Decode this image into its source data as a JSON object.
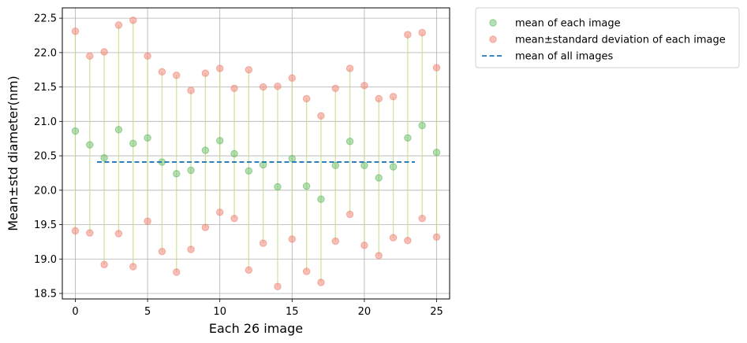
{
  "chart_data": {
    "type": "scatter",
    "title": "",
    "xlabel": "Each 26 image",
    "ylabel": "Mean±std diameter(nm)",
    "xlim": [
      -0.9,
      25.9
    ],
    "ylim": [
      18.42,
      22.65
    ],
    "xticks": [
      0,
      5,
      10,
      15,
      20,
      25
    ],
    "yticks": [
      18.5,
      19.0,
      19.5,
      20.0,
      20.5,
      21.0,
      21.5,
      22.0,
      22.5
    ],
    "grid": true,
    "legend_position": "outside-upper-right",
    "x": [
      0,
      1,
      2,
      3,
      4,
      5,
      6,
      7,
      8,
      9,
      10,
      11,
      12,
      13,
      14,
      15,
      16,
      17,
      18,
      19,
      20,
      21,
      22,
      23,
      24,
      25
    ],
    "series": [
      {
        "name": "mean of each image",
        "color": "#5cb85c",
        "values": [
          20.86,
          20.66,
          20.47,
          20.88,
          20.68,
          20.76,
          20.41,
          20.24,
          20.29,
          20.58,
          20.72,
          20.53,
          20.28,
          20.37,
          20.05,
          20.46,
          20.06,
          19.87,
          20.36,
          20.71,
          20.36,
          20.18,
          20.34,
          20.76,
          20.94,
          20.55
        ]
      },
      {
        "name": "mean±standard deviation of each image",
        "color": "#f08070",
        "upper": [
          22.31,
          21.95,
          22.01,
          22.4,
          22.47,
          21.95,
          21.72,
          21.67,
          21.45,
          21.7,
          21.77,
          21.48,
          21.75,
          21.5,
          21.51,
          21.63,
          21.33,
          21.08,
          21.48,
          21.77,
          21.52,
          21.33,
          21.36,
          22.26,
          22.29,
          21.78
        ],
        "lower": [
          19.41,
          19.38,
          18.92,
          19.37,
          18.89,
          19.55,
          19.11,
          18.81,
          19.14,
          19.46,
          19.68,
          19.59,
          18.84,
          19.23,
          18.6,
          19.29,
          18.82,
          18.66,
          19.26,
          19.65,
          19.2,
          19.05,
          19.31,
          19.27,
          19.59,
          19.32
        ]
      },
      {
        "name": "mean of all images",
        "type": "dashed-line",
        "color": "#1f77b4",
        "x_range": [
          1.5,
          23.5
        ],
        "value": 20.41
      }
    ],
    "errorbar_color": "#c8dc8c"
  }
}
